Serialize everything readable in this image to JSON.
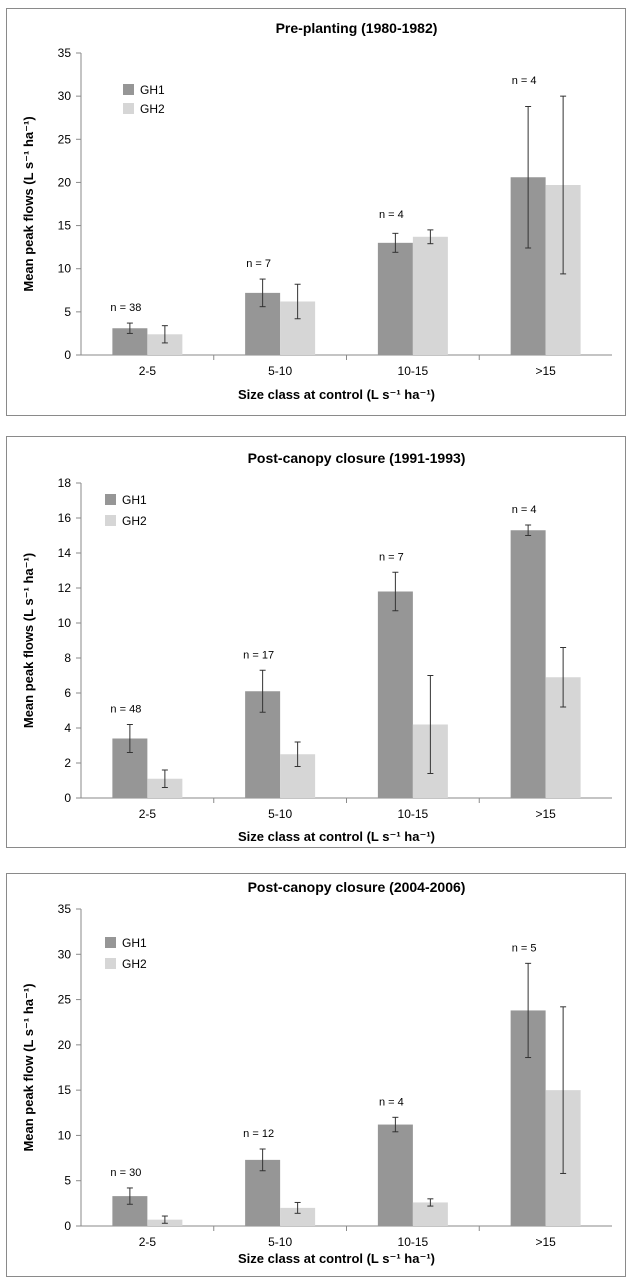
{
  "chart_data": [
    {
      "type": "bar",
      "title": "Pre-planting (1980-1982)",
      "xlabel": "Size class at control (L s⁻¹ ha⁻¹)",
      "ylabel": "Mean peak flows (L s⁻¹ ha⁻¹)",
      "categories": [
        "2-5",
        "5-10",
        "10-15",
        ">15"
      ],
      "ylim": [
        0,
        35
      ],
      "yticks": [
        0,
        5,
        10,
        15,
        20,
        25,
        30,
        35
      ],
      "legend_position": "top-left",
      "series": [
        {
          "name": "GH1",
          "color": "#969696",
          "values": [
            3.1,
            7.2,
            13.0,
            20.6
          ],
          "errors": [
            0.6,
            1.6,
            1.1,
            8.2
          ]
        },
        {
          "name": "GH2",
          "color": "#d6d6d6",
          "values": [
            2.4,
            6.2,
            13.7,
            19.7
          ],
          "errors": [
            1.0,
            2.0,
            0.8,
            10.3
          ]
        }
      ],
      "annotations": [
        "n = 38",
        "n = 7",
        "n = 4",
        "n = 4"
      ]
    },
    {
      "type": "bar",
      "title": "Post-canopy closure (1991-1993)",
      "xlabel": "Size class at control (L s⁻¹ ha⁻¹)",
      "ylabel": "Mean peak flows (L s⁻¹ ha⁻¹)",
      "categories": [
        "2-5",
        "5-10",
        "10-15",
        ">15"
      ],
      "ylim": [
        0,
        18
      ],
      "yticks": [
        0,
        2,
        4,
        6,
        8,
        10,
        12,
        14,
        16,
        18
      ],
      "legend_position": "top-left",
      "series": [
        {
          "name": "GH1",
          "color": "#969696",
          "values": [
            3.4,
            6.1,
            11.8,
            15.3
          ],
          "errors": [
            0.8,
            1.2,
            1.1,
            0.3
          ]
        },
        {
          "name": "GH2",
          "color": "#d6d6d6",
          "values": [
            1.1,
            2.5,
            4.2,
            6.9
          ],
          "errors": [
            0.5,
            0.7,
            2.8,
            1.7
          ]
        }
      ],
      "annotations": [
        "n = 48",
        "n = 17",
        "n = 7",
        "n = 4"
      ]
    },
    {
      "type": "bar",
      "title": "Post-canopy closure (2004-2006)",
      "xlabel": "Size class at control (L s⁻¹ ha⁻¹)",
      "ylabel": "Mean peak flow (L s⁻¹ ha⁻¹)",
      "categories": [
        "2-5",
        "5-10",
        "10-15",
        ">15"
      ],
      "ylim": [
        0,
        35
      ],
      "yticks": [
        0,
        5,
        10,
        15,
        20,
        25,
        30,
        35
      ],
      "legend_position": "top-left",
      "series": [
        {
          "name": "GH1",
          "color": "#969696",
          "values": [
            3.3,
            7.3,
            11.2,
            23.8
          ],
          "errors": [
            0.9,
            1.2,
            0.8,
            5.2
          ]
        },
        {
          "name": "GH2",
          "color": "#d6d6d6",
          "values": [
            0.7,
            2.0,
            2.6,
            15.0
          ],
          "errors": [
            0.4,
            0.6,
            0.4,
            9.2
          ]
        }
      ],
      "annotations": [
        "n = 30",
        "n = 12",
        "n = 4",
        "n = 5"
      ]
    }
  ]
}
